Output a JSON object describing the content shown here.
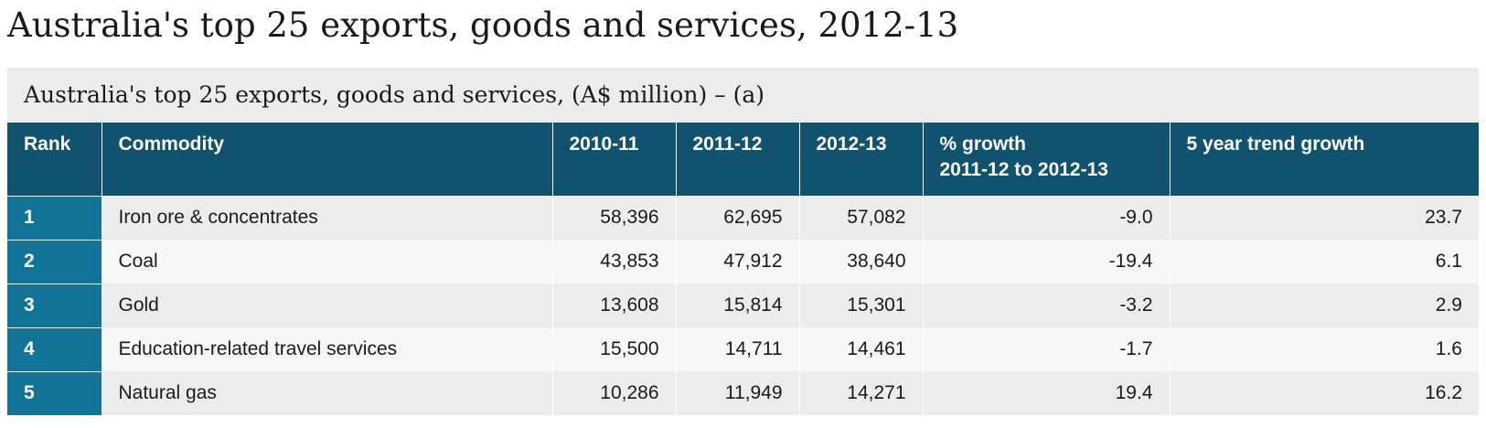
{
  "page": {
    "title": "Australia's top 25 exports, goods and services, 2012-13"
  },
  "table": {
    "caption": "Australia's top 25 exports, goods and services, (A$ million) – (a)",
    "columns": {
      "rank": "Rank",
      "commodity": "Commodity",
      "y2010_11": "2010-11",
      "y2011_12": "2011-12",
      "y2012_13": "2012-13",
      "growth_line1": "% growth",
      "growth_line2": "2011-12 to 2012-13",
      "trend": "5 year trend growth"
    },
    "rows": [
      {
        "rank": "1",
        "commodity": "Iron ore & concentrates",
        "y2010_11": "58,396",
        "y2011_12": "62,695",
        "y2012_13": "57,082",
        "growth": "-9.0",
        "trend": "23.7"
      },
      {
        "rank": "2",
        "commodity": "Coal",
        "y2010_11": "43,853",
        "y2011_12": "47,912",
        "y2012_13": "38,640",
        "growth": "-19.4",
        "trend": "6.1"
      },
      {
        "rank": "3",
        "commodity": "Gold",
        "y2010_11": "13,608",
        "y2011_12": "15,814",
        "y2012_13": "15,301",
        "growth": "-3.2",
        "trend": "2.9"
      },
      {
        "rank": "4",
        "commodity": "Education-related travel services",
        "y2010_11": "15,500",
        "y2011_12": "14,711",
        "y2012_13": "14,461",
        "growth": "-1.7",
        "trend": "1.6"
      },
      {
        "rank": "5",
        "commodity": "Natural gas",
        "y2010_11": "10,286",
        "y2011_12": "11,949",
        "y2012_13": "14,271",
        "growth": "19.4",
        "trend": "16.2"
      }
    ]
  },
  "colors": {
    "header_bg": "#11536f",
    "rank_bg": "#117395",
    "row_odd_bg": "#ececec",
    "row_even_bg": "#f7f7f7",
    "caption_bg": "#ececec"
  }
}
